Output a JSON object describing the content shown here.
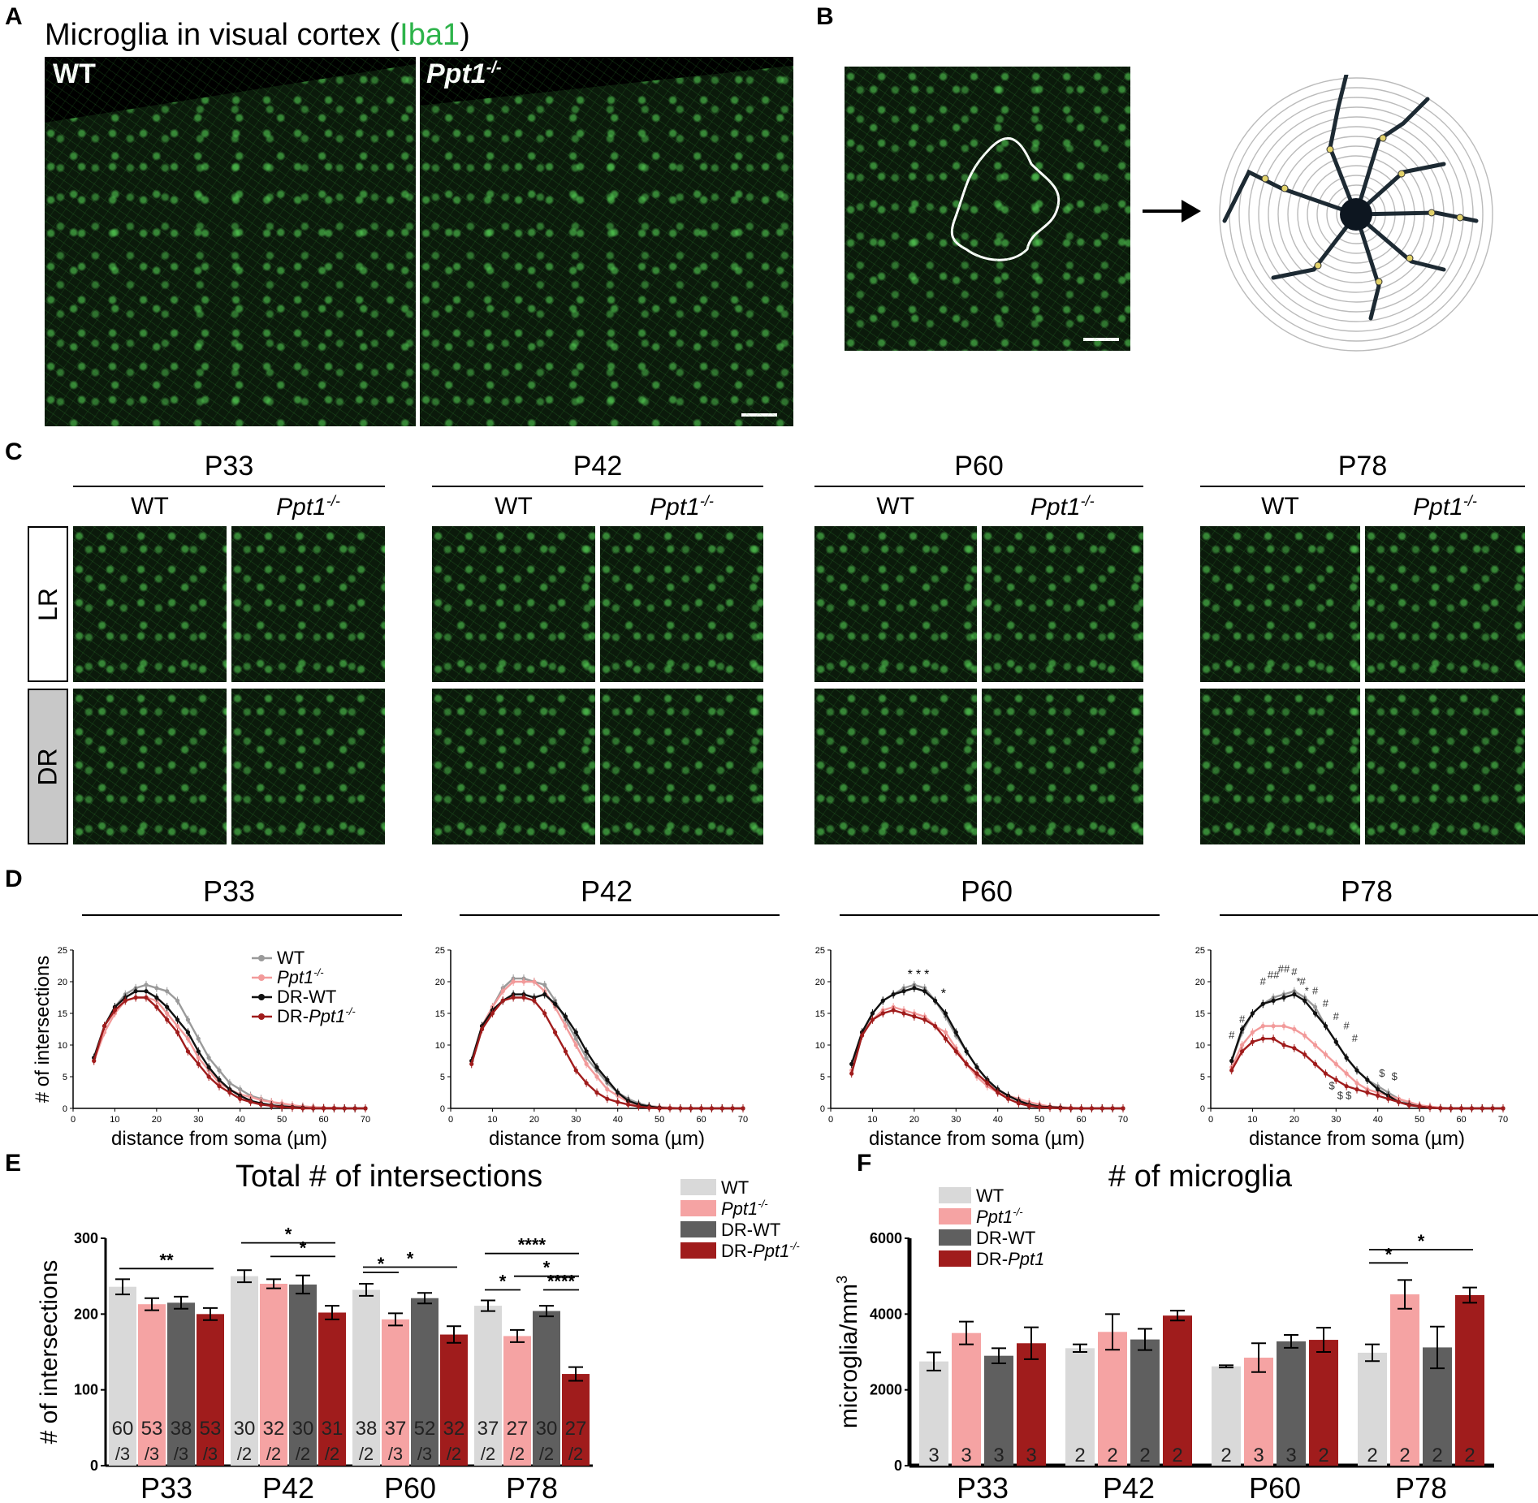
{
  "panel_labels": {
    "A": "A",
    "B": "B",
    "C": "C",
    "D": "D",
    "E": "E",
    "F": "F"
  },
  "panelA": {
    "title_prefix": "Microglia in visual cortex (",
    "title_marker": "Iba1",
    "title_suffix": ")",
    "marker_color": "#2db34a",
    "left_label": "WT",
    "right_label": "Ppt1",
    "right_label_sup": "-/-"
  },
  "panelC": {
    "timepoints": [
      "P33",
      "P42",
      "P60",
      "P78"
    ],
    "genotype_wt": "WT",
    "genotype_ko": "Ppt1",
    "genotype_ko_sup": "-/-",
    "rows": [
      "LR",
      "DR"
    ]
  },
  "panelD": {
    "xlabel_prefix": "distance from soma (",
    "xlabel_unit": "µm",
    "xlabel_suffix": ")",
    "ylabel": "# of intersections",
    "legend": [
      "WT",
      "Ppt1",
      "DR-WT",
      "DR-Ppt1"
    ],
    "legend_sup": "-/-",
    "colors": {
      "WT": "#9a9a9a",
      "Ppt1": "#f29a9a",
      "DR-WT": "#111111",
      "DR-Ppt1": "#a01c1c"
    }
  },
  "panelE": {
    "title": "Total # of intersections",
    "ylabel": "# of intersections",
    "legend": [
      "WT",
      "Ppt1",
      "DR-WT",
      "DR-Ppt1"
    ],
    "legend_sup": "-/-",
    "n_labels": [
      [
        "60",
        "/3",
        "53",
        "/3",
        "38",
        "/3",
        "53",
        "/3"
      ],
      [
        "30",
        "/2",
        "32",
        "/2",
        "30",
        "/2",
        "31",
        "/2"
      ],
      [
        "38",
        "/2",
        "37",
        "/3",
        "52",
        "/3",
        "32",
        "/2"
      ],
      [
        "37",
        "/2",
        "27",
        "/2",
        "30",
        "/2",
        "27",
        "/2"
      ]
    ],
    "sig": {
      "P33": [
        "**"
      ],
      "P42": [
        "*",
        "*"
      ],
      "P60": [
        "*",
        "*"
      ],
      "P78": [
        "****",
        "*",
        "*",
        "****"
      ]
    }
  },
  "panelF": {
    "title": "# of microglia",
    "ylabel": "microglia/mm",
    "ylabel_sup": "3",
    "legend": [
      "WT",
      "Ppt1",
      "DR-WT",
      "DR-Ppt1"
    ],
    "legend_sup": "-/-",
    "n_labels": [
      [
        "3",
        "3",
        "3",
        "3"
      ],
      [
        "2",
        "2",
        "2",
        "2"
      ],
      [
        "2",
        "3",
        "3",
        "2"
      ],
      [
        "2",
        "2",
        "2",
        "2"
      ]
    ],
    "sig": {
      "P78": [
        "*",
        "*"
      ]
    }
  },
  "chart_data": [
    {
      "type": "line",
      "panel": "D",
      "title": "P33",
      "xlabel": "distance from soma (µm)",
      "ylabel": "# of intersections",
      "xlim": [
        0,
        70
      ],
      "ylim": [
        0,
        25
      ],
      "xticks": [
        0,
        10,
        20,
        30,
        40,
        50,
        60,
        70
      ],
      "yticks": [
        0,
        5,
        10,
        15,
        20,
        25
      ],
      "x": [
        5,
        7.5,
        10,
        12.5,
        15,
        17.5,
        20,
        22.5,
        25,
        27.5,
        30,
        32.5,
        35,
        37.5,
        40,
        42.5,
        45,
        47.5,
        50,
        52.5,
        55,
        57.5,
        60,
        62.5,
        65,
        67.5,
        70
      ],
      "series": [
        {
          "name": "WT",
          "values": [
            8,
            13,
            16,
            18,
            19,
            19.5,
            19,
            18.5,
            17,
            14,
            11,
            8,
            6,
            4,
            3,
            2,
            1.5,
            1,
            0.6,
            0.4,
            0.3,
            0.2,
            0.1,
            0.1,
            0,
            0,
            0
          ]
        },
        {
          "name": "Ppt1-/-",
          "values": [
            7.5,
            12,
            15,
            17,
            17.5,
            17.5,
            17,
            15,
            13,
            11,
            8,
            6,
            4,
            3,
            2.2,
            1.8,
            1.3,
            1,
            0.8,
            0.5,
            0.3,
            0.2,
            0.1,
            0.1,
            0,
            0,
            0
          ]
        },
        {
          "name": "DR-WT",
          "values": [
            8,
            13,
            16,
            17.5,
            18.5,
            18.5,
            17.5,
            16,
            14,
            12,
            9,
            6.5,
            4.5,
            3,
            2,
            1.2,
            0.8,
            0.5,
            0.3,
            0.2,
            0.1,
            0,
            0,
            0,
            0,
            0,
            0
          ]
        },
        {
          "name": "DR-Ppt1-/-",
          "values": [
            7.5,
            13,
            15.5,
            17,
            17.5,
            17.5,
            16,
            14,
            12,
            9,
            7,
            5,
            3.5,
            2.5,
            1.5,
            1,
            0.6,
            0.4,
            0.2,
            0.1,
            0,
            0,
            0,
            0,
            0,
            0,
            0
          ]
        }
      ]
    },
    {
      "type": "line",
      "panel": "D",
      "title": "P42",
      "xlabel": "distance from soma (µm)",
      "ylabel": "# of intersections",
      "xlim": [
        0,
        70
      ],
      "ylim": [
        0,
        25
      ],
      "x": [
        5,
        7.5,
        10,
        12.5,
        15,
        17.5,
        20,
        22.5,
        25,
        27.5,
        30,
        32.5,
        35,
        37.5,
        40,
        42.5,
        45,
        47.5,
        50,
        52.5,
        55,
        57.5,
        60,
        62.5,
        65,
        67.5,
        70
      ],
      "series": [
        {
          "name": "WT",
          "values": [
            7.5,
            13,
            16,
            19,
            20.5,
            20.5,
            20,
            19.5,
            17,
            14,
            11,
            8,
            6,
            4,
            2.5,
            1.5,
            0.8,
            0.4,
            0.2,
            0.1,
            0,
            0,
            0,
            0,
            0,
            0,
            0
          ]
        },
        {
          "name": "Ppt1-/-",
          "values": [
            7.5,
            13,
            16,
            18.5,
            20,
            20,
            20,
            18.5,
            16,
            13,
            10,
            7,
            5,
            3,
            2,
            1,
            0.5,
            0.3,
            0.2,
            0.1,
            0,
            0,
            0,
            0,
            0,
            0,
            0
          ]
        },
        {
          "name": "DR-WT",
          "values": [
            7.5,
            13,
            15.5,
            17,
            18,
            18,
            17.5,
            18,
            16.5,
            14.5,
            12,
            9,
            6.5,
            4.5,
            2.5,
            1.2,
            0.6,
            0.3,
            0.1,
            0,
            0,
            0,
            0,
            0,
            0,
            0,
            0
          ]
        },
        {
          "name": "DR-Ppt1-/-",
          "values": [
            7,
            12.5,
            15,
            17,
            17.5,
            17.5,
            17,
            15,
            12,
            9,
            6,
            4,
            2.5,
            1.5,
            1,
            0.6,
            0.3,
            0.1,
            0,
            0,
            0,
            0,
            0,
            0,
            0,
            0,
            0
          ]
        }
      ]
    },
    {
      "type": "line",
      "panel": "D",
      "title": "P60",
      "xlabel": "distance from soma (µm)",
      "ylabel": "# of intersections",
      "xlim": [
        0,
        70
      ],
      "ylim": [
        0,
        25
      ],
      "x": [
        5,
        7.5,
        10,
        12.5,
        15,
        17.5,
        20,
        22.5,
        25,
        27.5,
        30,
        32.5,
        35,
        37.5,
        40,
        42.5,
        45,
        47.5,
        50,
        52.5,
        55,
        57.5,
        60,
        62.5,
        65,
        67.5,
        70
      ],
      "series": [
        {
          "name": "WT",
          "values": [
            7,
            12,
            15,
            17,
            18,
            19,
            19.5,
            19,
            17,
            14.5,
            11.5,
            9,
            6.5,
            4.5,
            3,
            2,
            1.2,
            0.7,
            0.4,
            0.2,
            0.1,
            0,
            0,
            0,
            0,
            0,
            0
          ]
        },
        {
          "name": "Ppt1-/-",
          "values": [
            6,
            12,
            14,
            15.5,
            16,
            15.5,
            15,
            14.5,
            13,
            12,
            9.5,
            7,
            5,
            3.5,
            2.5,
            2,
            1.5,
            1,
            0.6,
            0.3,
            0.2,
            0.1,
            0,
            0,
            0,
            0,
            0
          ]
        },
        {
          "name": "DR-WT",
          "values": [
            7,
            12,
            15,
            17,
            18,
            18.5,
            19,
            18.5,
            17,
            15,
            12,
            9,
            6.5,
            4.5,
            3,
            2,
            1.2,
            0.6,
            0.3,
            0.2,
            0.1,
            0,
            0,
            0,
            0,
            0,
            0
          ]
        },
        {
          "name": "DR-Ppt1-/-",
          "values": [
            5.5,
            11.5,
            14,
            15,
            15.5,
            15,
            14.5,
            14,
            13,
            11,
            9,
            7,
            5.5,
            4,
            2.5,
            1.5,
            0.8,
            0.4,
            0.2,
            0.1,
            0,
            0,
            0,
            0,
            0,
            0,
            0
          ]
        }
      ]
    },
    {
      "type": "line",
      "panel": "D",
      "title": "P78",
      "xlabel": "distance from soma (µm)",
      "ylabel": "# of intersections",
      "xlim": [
        0,
        70
      ],
      "ylim": [
        0,
        25
      ],
      "x": [
        5,
        7.5,
        10,
        12.5,
        15,
        17.5,
        20,
        22.5,
        25,
        27.5,
        30,
        32.5,
        35,
        37.5,
        40,
        42.5,
        45,
        47.5,
        50,
        52.5,
        55,
        57.5,
        60,
        62.5,
        65,
        67.5,
        70
      ],
      "series": [
        {
          "name": "WT",
          "values": [
            7.5,
            12,
            15,
            16.5,
            17.5,
            18,
            18.5,
            17.5,
            16,
            13,
            10.5,
            8,
            6,
            4.5,
            3.5,
            2.5,
            1.5,
            0.8,
            0.4,
            0.2,
            0.1,
            0,
            0,
            0,
            0,
            0,
            0
          ]
        },
        {
          "name": "Ppt1-/-",
          "values": [
            6.5,
            10,
            12,
            13,
            13,
            13,
            12.5,
            11.5,
            10,
            8.5,
            7,
            5.5,
            4,
            3,
            2.5,
            2,
            1.5,
            1,
            0.5,
            0.3,
            0.1,
            0,
            0,
            0,
            0,
            0,
            0
          ]
        },
        {
          "name": "DR-WT",
          "values": [
            7.5,
            12.5,
            15,
            16.5,
            17,
            17.5,
            18,
            17,
            15,
            13,
            10.5,
            8,
            6,
            4.5,
            3,
            2,
            1,
            0.6,
            0.3,
            0.1,
            0,
            0,
            0,
            0,
            0,
            0,
            0
          ]
        },
        {
          "name": "DR-Ppt1-/-",
          "values": [
            6,
            9,
            10.5,
            11,
            11,
            10,
            9.5,
            8.5,
            7,
            5.5,
            4.5,
            3.5,
            3,
            2.5,
            2,
            1.5,
            1,
            0.5,
            0.3,
            0.1,
            0,
            0,
            0,
            0,
            0,
            0,
            0
          ]
        }
      ],
      "annotations": [
        "#",
        "#",
        "##",
        "###",
        "####",
        "$",
        "$$",
        "$",
        "$"
      ]
    },
    {
      "type": "bar",
      "panel": "E",
      "title": "Total # of intersections",
      "ylabel": "# of intersections",
      "ylim": [
        0,
        300
      ],
      "yticks": [
        0,
        100,
        200,
        300
      ],
      "categories": [
        "P33",
        "P42",
        "P60",
        "P78"
      ],
      "series": [
        {
          "name": "WT",
          "values": [
            236,
            250,
            232,
            211
          ],
          "errors": [
            10,
            8,
            8,
            7
          ],
          "color": "#d9d9d9"
        },
        {
          "name": "Ppt1-/-",
          "values": [
            213,
            240,
            193,
            171
          ],
          "errors": [
            8,
            6,
            8,
            8
          ],
          "color": "#f5a3a3"
        },
        {
          "name": "DR-WT",
          "values": [
            215,
            239,
            221,
            204
          ],
          "errors": [
            8,
            12,
            7,
            7
          ],
          "color": "#5f5f5f"
        },
        {
          "name": "DR-Ppt1-/-",
          "values": [
            200,
            202,
            173,
            121
          ],
          "errors": [
            8,
            9,
            11,
            9
          ],
          "color": "#a01c1c"
        }
      ]
    },
    {
      "type": "bar",
      "panel": "F",
      "title": "# of microglia",
      "ylabel": "microglia/mm3",
      "ylim": [
        0,
        6000
      ],
      "yticks": [
        0,
        2000,
        4000,
        6000
      ],
      "categories": [
        "P33",
        "P42",
        "P60",
        "P78"
      ],
      "series": [
        {
          "name": "WT",
          "values": [
            2750,
            3100,
            2620,
            2980
          ],
          "errors": [
            240,
            100,
            30,
            220
          ],
          "color": "#d9d9d9"
        },
        {
          "name": "Ppt1-/-",
          "values": [
            3500,
            3530,
            2850,
            4520
          ],
          "errors": [
            300,
            470,
            380,
            380
          ],
          "color": "#f5a3a3"
        },
        {
          "name": "DR-WT",
          "values": [
            2900,
            3330,
            3280,
            3120
          ],
          "errors": [
            200,
            280,
            170,
            550
          ],
          "color": "#5f5f5f"
        },
        {
          "name": "DR-Ppt1",
          "values": [
            3230,
            3960,
            3320,
            4500
          ],
          "errors": [
            420,
            130,
            320,
            200
          ],
          "color": "#a01c1c"
        }
      ]
    }
  ]
}
